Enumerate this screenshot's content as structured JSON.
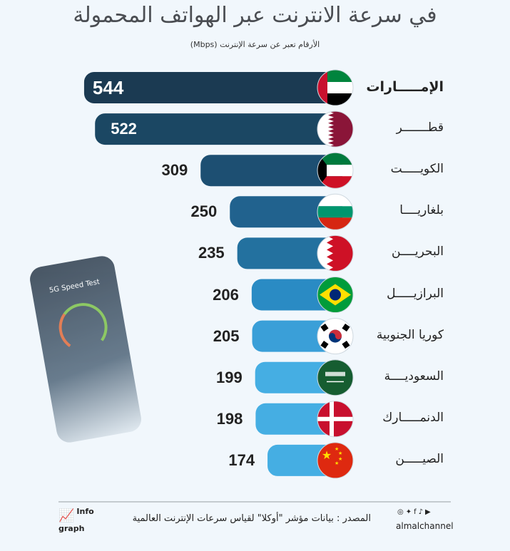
{
  "title": "في سرعة الانترنت عبر الهواتف المحمولة",
  "subtitle": "الأرقام تعبر عن سرعة الإنترنت (Mbps)",
  "chart_data": {
    "type": "bar",
    "orientation": "horizontal",
    "categories": [
      "الإمـــــارات",
      "قطـــــــر",
      "الكويـــــت",
      "بلغاريــــا",
      "البحريــــن",
      "البرازيـــــل",
      "كوريا الجنوبية",
      "السعوديــــة",
      "الدنمـــــارك",
      "الصيـــــن"
    ],
    "values": [
      544,
      522,
      309,
      250,
      235,
      206,
      205,
      199,
      198,
      174
    ],
    "flags": [
      "uae-flag",
      "qatar-flag",
      "kuwait-flag",
      "bulgaria-flag",
      "bahrain-flag",
      "brazil-flag",
      "south-korea-flag",
      "saudi-flag",
      "denmark-flag",
      "china-flag"
    ],
    "colors": [
      "#1b3a52",
      "#1b4763",
      "#1d4f72",
      "#21628e",
      "#23719f",
      "#2a8bc4",
      "#3a9fd8",
      "#45aee3",
      "#45aee3",
      "#45aee3"
    ],
    "unit": "Mbps",
    "grid": false
  },
  "phone": {
    "title": "5G Speed Test"
  },
  "footer": {
    "source": "المصدر : بيانات مؤشر \"أوكلا\" لقياس سرعات الإنترنت العالمية",
    "brand": "almalchannel",
    "social_icons": [
      "instagram-icon",
      "twitter-icon",
      "facebook-icon",
      "tiktok-icon",
      "youtube-icon"
    ],
    "logo_line1": "Info",
    "logo_line2": "graph"
  }
}
